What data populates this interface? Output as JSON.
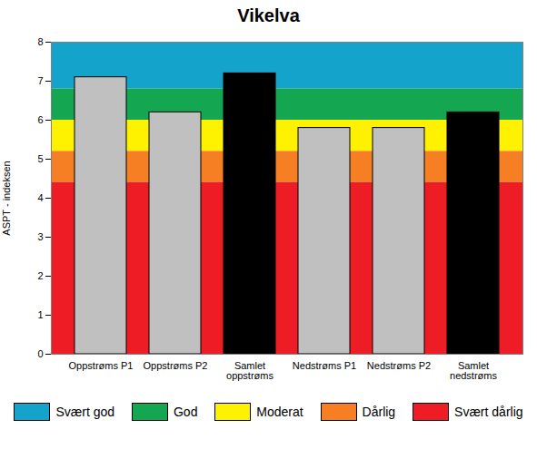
{
  "chart_data": {
    "type": "bar",
    "title": "Vikelva",
    "categories": [
      "Oppstrøms P1",
      "Oppstrøms P2",
      "Samlet\noppstrøms",
      "Nedstrøms P1",
      "Nedstrøms P2",
      "Samlet\nnedstrøms"
    ],
    "values": [
      7.1,
      6.2,
      7.2,
      5.8,
      5.8,
      6.2
    ],
    "colors": [
      "#c0c0c0",
      "#c0c0c0",
      "#000000",
      "#c0c0c0",
      "#c0c0c0",
      "#000000"
    ],
    "y_label": "ASPT - indeksen",
    "ylim": [
      0,
      8
    ],
    "yticks": [
      0,
      1,
      2,
      3,
      4,
      5,
      6,
      7,
      8
    ],
    "grid": false,
    "legend": "bottom",
    "bands": [
      {
        "name": "Svært god",
        "color": "#13a3cb",
        "from": 6.8,
        "to": 8
      },
      {
        "name": "God",
        "color": "#14a650",
        "from": 6.0,
        "to": 6.8
      },
      {
        "name": "Moderat",
        "color": "#fff200",
        "from": 5.2,
        "to": 6.0
      },
      {
        "name": "Dårlig",
        "color": "#f57f22",
        "from": 4.4,
        "to": 5.2
      },
      {
        "name": "Svært dårlig",
        "color": "#ee1d25",
        "from": 0,
        "to": 4.4
      }
    ]
  }
}
